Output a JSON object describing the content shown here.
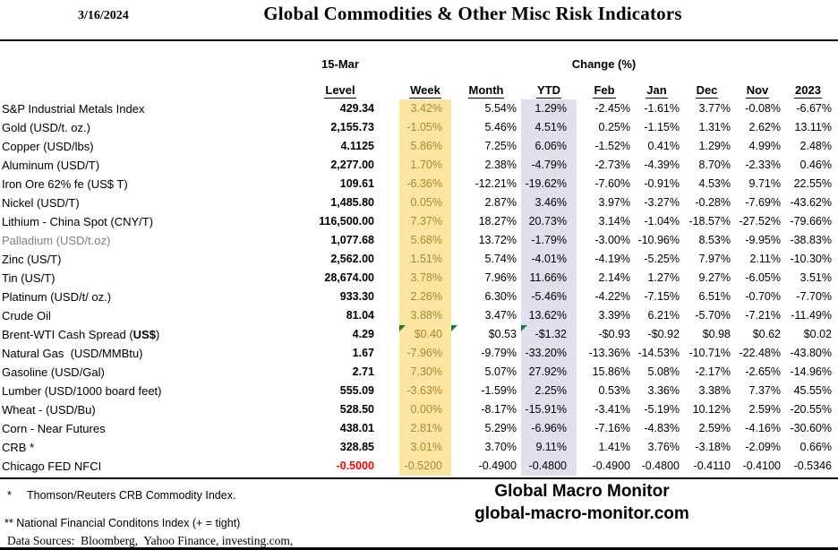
{
  "header": {
    "date": "3/16/2024",
    "title": "Global Commodities & Other Misc Risk Indicators"
  },
  "table": {
    "asof_label": "15-Mar",
    "change_label": "Change (%)",
    "columns": [
      "Level",
      "Week",
      "Month",
      "YTD",
      "Feb",
      "Jan",
      "Dec",
      "Nov",
      "2023"
    ],
    "rows": [
      {
        "name": "S&P Industrial Metals Index",
        "level": "429.34",
        "changes": [
          "3.42%",
          "5.54%",
          "1.29%",
          "-2.45%",
          "-1.61%",
          "3.77%",
          "-0.08%",
          "-6.67%"
        ]
      },
      {
        "name": "Gold (USD/t. oz.)",
        "level": "2,155.73",
        "changes": [
          "-1.05%",
          "5.46%",
          "4.51%",
          "0.25%",
          "-1.15%",
          "1.31%",
          "2.62%",
          "13.11%"
        ]
      },
      {
        "name": "Copper (USD/lbs)",
        "level": "4.1125",
        "changes": [
          "5.86%",
          "7.25%",
          "6.06%",
          "-1.52%",
          "0.41%",
          "1.29%",
          "4.99%",
          "2.48%"
        ]
      },
      {
        "name": "Aluminum (USD/T)",
        "level": "2,277.00",
        "changes": [
          "1.70%",
          "2.38%",
          "-4.79%",
          "-2.73%",
          "-4.39%",
          "8.70%",
          "-2.33%",
          "0.46%"
        ]
      },
      {
        "name": "Iron Ore 62% fe (US$ T)",
        "level": "109.61",
        "changes": [
          "-6.36%",
          "-12.21%",
          "-19.62%",
          "-7.60%",
          "-0.91%",
          "4.53%",
          "9.71%",
          "22.55%"
        ]
      },
      {
        "name": "Nickel (USD/T)",
        "level": "1,485.80",
        "changes": [
          "0.05%",
          "2.87%",
          "3.46%",
          "3.97%",
          "-3.27%",
          "-0.28%",
          "-7.69%",
          "-43.62%"
        ]
      },
      {
        "name": "Lithium - China Spot (CNY/T)",
        "level": "116,500.00",
        "changes": [
          "7.37%",
          "18.27%",
          "20.73%",
          "3.14%",
          "-1.04%",
          "-18.57%",
          "-27.52%",
          "-79.66%"
        ]
      },
      {
        "name": "Palladium (USD/t.oz)",
        "name_color": "gray",
        "level": "1,077.68",
        "changes": [
          "5.68%",
          "13.72%",
          "-1.79%",
          "-3.00%",
          "-10.96%",
          "8.53%",
          "-9.95%",
          "-38.83%"
        ]
      },
      {
        "name": "Zinc (US/T)",
        "level": "2,562.00",
        "changes": [
          "1.51%",
          "5.74%",
          "-4.01%",
          "-4.19%",
          "-5.25%",
          "7.97%",
          "2.11%",
          "-10.30%"
        ]
      },
      {
        "name": "Tin (US/T)",
        "level": "28,674.00",
        "changes": [
          "3.78%",
          "7.96%",
          "11.66%",
          "2.14%",
          "1.27%",
          "9.27%",
          "-6.05%",
          "3.51%"
        ]
      },
      {
        "name": "Platinum (USD/t/ oz.)",
        "level": "933.30",
        "changes": [
          "2.26%",
          "6.30%",
          "-5.46%",
          "-4.22%",
          "-7.15%",
          "6.51%",
          "-0.70%",
          "-7.70%"
        ]
      },
      {
        "name": "Crude Oil",
        "level": "81.04",
        "changes": [
          "3.88%",
          "3.47%",
          "13.62%",
          "3.39%",
          "6.21%",
          "-5.70%",
          "-7.21%",
          "-11.49%"
        ]
      },
      {
        "name": "Brent-WTI Cash Spread (US$)",
        "bold_in_name": "US$",
        "level": "4.29",
        "changes": [
          "$0.40",
          "$0.53",
          "-$1.32",
          "-$0.93",
          "-$0.92",
          "$0.98",
          "$0.62",
          "$0.02"
        ],
        "flags": [
          0,
          1,
          2
        ]
      },
      {
        "name": "Natural Gas  (USD/MMBtu)",
        "level": "1.67",
        "changes": [
          "-7.96%",
          "-9.79%",
          "-33.20%",
          "-13.36%",
          "-14.53%",
          "-10.71%",
          "-22.48%",
          "-43.80%"
        ]
      },
      {
        "name": "Gasoline (USD/Gal)",
        "level": "2.71",
        "changes": [
          "7.30%",
          "5.07%",
          "27.92%",
          "15.86%",
          "5.08%",
          "-2.17%",
          "-2.65%",
          "-14.96%"
        ]
      },
      {
        "name": "Lumber (USD/1000 board feet)",
        "level": "555.09",
        "changes": [
          "-3.63%",
          "-1.59%",
          "2.25%",
          "0.53%",
          "3.36%",
          "3.38%",
          "7.37%",
          "45.55%"
        ]
      },
      {
        "name": "Wheat - (USD/Bu)",
        "level": "528.50",
        "changes": [
          "0.00%",
          "-8.17%",
          "-15.91%",
          "-3.41%",
          "-5.19%",
          "10.12%",
          "2.59%",
          "-20.55%"
        ]
      },
      {
        "name": "Corn - Near Futures",
        "level": "438.01",
        "changes": [
          "2.81%",
          "5.29%",
          "-6.96%",
          "-7.16%",
          "-4.83%",
          "2.59%",
          "-4.16%",
          "-30.60%"
        ]
      },
      {
        "name": "CRB *",
        "level": "328.85",
        "changes": [
          "3.01%",
          "3.70%",
          "9.11%",
          "1.41%",
          "3.76%",
          "-3.18%",
          "-2.09%",
          "0.66%"
        ]
      },
      {
        "name": "Chicago FED NFCI",
        "level": "-0.5000",
        "level_color": "red",
        "changes": [
          "-0.5200",
          "-0.4900",
          "-0.4800",
          "-0.4900",
          "-0.4800",
          "-0.4110",
          "-0.4100",
          "-0.5346"
        ]
      }
    ]
  },
  "footer": {
    "note1": "*     Thomson/Reuters CRB Commodity Index.",
    "note2": "** National Financial Conditons Index (+ = tight)",
    "note3": "Data Sources:  Bloomberg,  Yahoo Finance, investing.com,",
    "brand_name": "Global Macro Monitor",
    "brand_url": "global-macro-monitor.com"
  },
  "colors": {
    "week_highlight_bg": "#fbe5a0",
    "week_highlight_text": "#ad8530",
    "ytd_highlight_bg": "#e1dfed",
    "nfci_level_text": "#ff0000",
    "muted_label_text": "#7f7f7f",
    "note_flag_green": "#1e7b34"
  }
}
